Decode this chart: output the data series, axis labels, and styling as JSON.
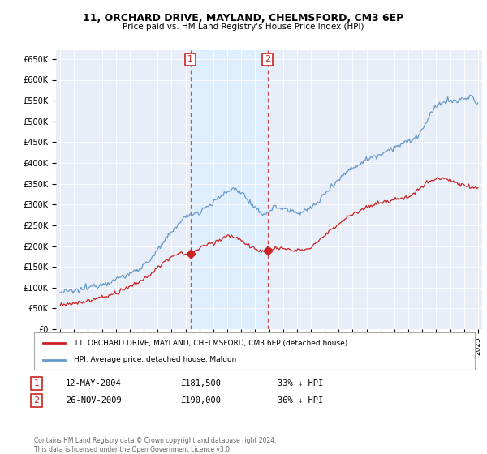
{
  "title": "11, ORCHARD DRIVE, MAYLAND, CHELMSFORD, CM3 6EP",
  "subtitle": "Price paid vs. HM Land Registry's House Price Index (HPI)",
  "ylabel_ticks": [
    "£0",
    "£50K",
    "£100K",
    "£150K",
    "£200K",
    "£250K",
    "£300K",
    "£350K",
    "£400K",
    "£450K",
    "£500K",
    "£550K",
    "£600K",
    "£650K"
  ],
  "ytick_values": [
    0,
    50000,
    100000,
    150000,
    200000,
    250000,
    300000,
    350000,
    400000,
    450000,
    500000,
    550000,
    600000,
    650000
  ],
  "ylim": [
    0,
    672000
  ],
  "xlim_start": 1994.7,
  "xlim_end": 2025.3,
  "hpi_color": "#6699cc",
  "price_color": "#cc2222",
  "sale1_year": 2004.36,
  "sale1_price": 181500,
  "sale2_year": 2009.9,
  "sale2_price": 190000,
  "legend_line1": "11, ORCHARD DRIVE, MAYLAND, CHELMSFORD, CM3 6EP (detached house)",
  "legend_line2": "HPI: Average price, detached house, Maldon",
  "table_row1": [
    "1",
    "12-MAY-2004",
    "£181,500",
    "33% ↓ HPI"
  ],
  "table_row2": [
    "2",
    "26-NOV-2009",
    "£190,000",
    "36% ↓ HPI"
  ],
  "footer": "Contains HM Land Registry data © Crown copyright and database right 2024.\nThis data is licensed under the Open Government Licence v3.0.",
  "background_color": "#ffffff",
  "plot_bg_color": "#e8eef8",
  "shading_color": "#ddeeff",
  "grid_color": "#cccccc"
}
